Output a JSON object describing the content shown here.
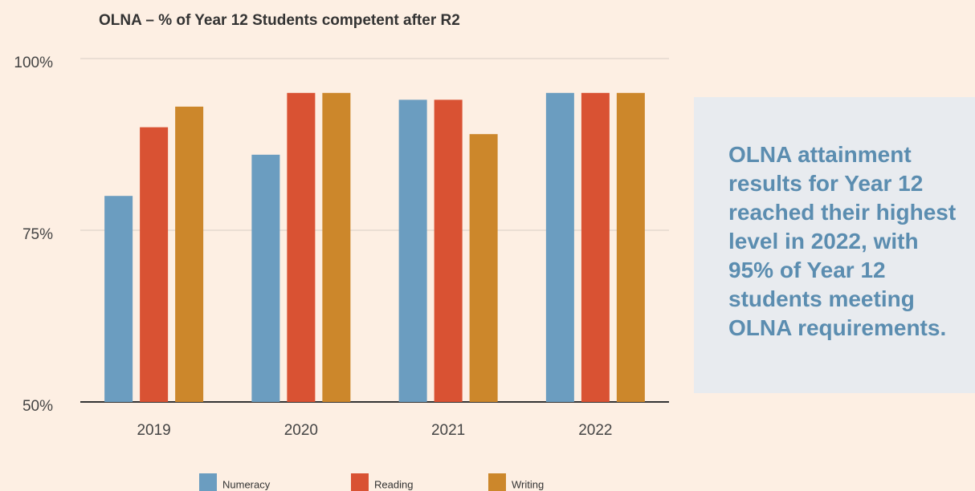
{
  "chart_data": {
    "type": "bar",
    "title": "OLNA – % of Year 12 Students competent after R2",
    "categories": [
      "2019",
      "2020",
      "2021",
      "2022"
    ],
    "series": [
      {
        "name": "Numeracy",
        "color": "#6b9dc0",
        "values": [
          80,
          86,
          94,
          95
        ]
      },
      {
        "name": "Reading",
        "color": "#d95233",
        "values": [
          90,
          95,
          94,
          95
        ]
      },
      {
        "name": "Writing",
        "color": "#cc872b",
        "values": [
          93,
          95,
          89,
          95
        ]
      }
    ],
    "ylim": [
      50,
      100
    ],
    "yticks": [
      {
        "value": 50,
        "label": "50%"
      },
      {
        "value": 75,
        "label": "75%"
      },
      {
        "value": 100,
        "label": "100%"
      }
    ],
    "grid": true,
    "legend": "bottom"
  },
  "callout": "OLNA attainment results for Year 12 reached their highest level in 2022, with 95% of Year 12 students meeting OLNA requirements."
}
